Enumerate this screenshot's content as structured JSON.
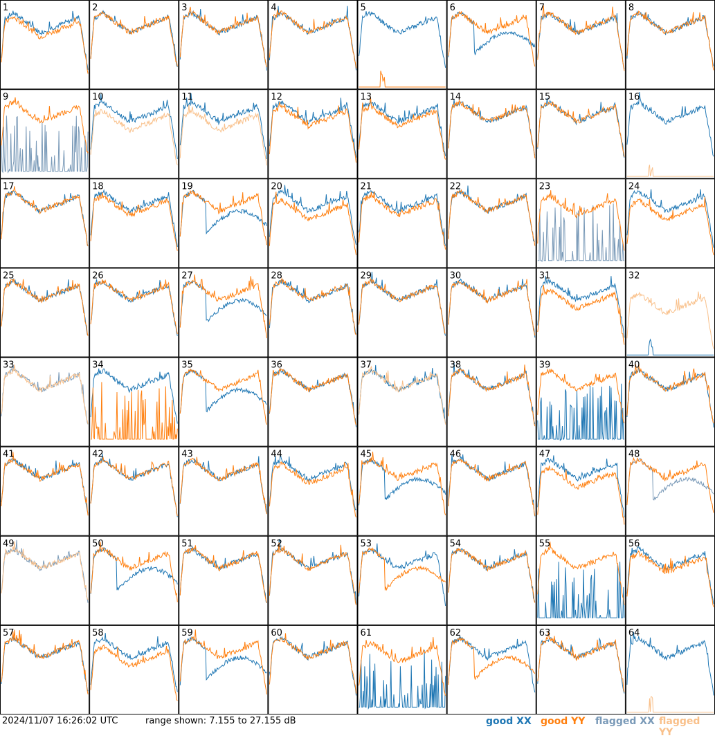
{
  "footer": {
    "timestamp": "2024/11/07 16:26:02 UTC",
    "range": "range shown: 7.155 to 27.155 dB",
    "legend": {
      "good_xx": "good XX",
      "good_yy": "good YY",
      "flagged_xx": "flagged XX",
      "flagged_yy": "flagged YY"
    }
  },
  "colors": {
    "good_xx": "#1f77b4",
    "good_yy": "#ff7f0e",
    "flagged_xx": "#7a9ab8",
    "flagged_yy": "#f9c08a"
  },
  "chart_data": {
    "type": "line",
    "grid": "8x8 small multiples",
    "ylim_db": [
      7.155,
      27.155
    ],
    "panel_labels": [
      "1",
      "2",
      "3",
      "4",
      "5",
      "6",
      "7",
      "8",
      "9",
      "10",
      "11",
      "12",
      "13",
      "14",
      "15",
      "16",
      "17",
      "18",
      "19",
      "20",
      "21",
      "22",
      "23",
      "24",
      "25",
      "26",
      "27",
      "28",
      "29",
      "30",
      "31",
      "32",
      "33",
      "34",
      "35",
      "36",
      "37",
      "38",
      "39",
      "40",
      "41",
      "42",
      "43",
      "44",
      "45",
      "46",
      "47",
      "48",
      "49",
      "50",
      "51",
      "52",
      "53",
      "54",
      "55",
      "56",
      "57",
      "58",
      "59",
      "60",
      "61",
      "62",
      "63",
      "64"
    ],
    "panels": [
      {
        "xx": "bandpass",
        "yy": "bandpass",
        "yy_offset": -1
      },
      {
        "xx": "bandpass",
        "yy": "bandpass",
        "yy_offset": 0
      },
      {
        "xx": "bandpass",
        "yy": "bandpass",
        "yy_offset": 0
      },
      {
        "xx": "bandpass",
        "yy": "bandpass",
        "yy_offset": 0
      },
      {
        "xx": "bandpass",
        "yy": "flat"
      },
      {
        "xx": "dip",
        "yy": "bandpass",
        "yy_offset": 0
      },
      {
        "xx": "bandpass",
        "yy": "bandpass",
        "yy_offset": 0
      },
      {
        "xx": "bandpass",
        "yy": "bandpass",
        "yy_offset": 0
      },
      {
        "xx": "spikes",
        "yy": "bandpass",
        "yy_offset": 0,
        "xx_flagged": true
      },
      {
        "xx": "bandpass",
        "yy": "bandpass",
        "yy_offset": -2,
        "yy_flagged": true
      },
      {
        "xx": "bandpass",
        "yy": "bandpass",
        "yy_offset": -2,
        "yy_flagged": true
      },
      {
        "xx": "bandpass",
        "yy": "bandpass",
        "yy_offset": -1
      },
      {
        "xx": "bandpass",
        "yy": "bandpass",
        "yy_offset": -1
      },
      {
        "xx": "bandpass",
        "yy": "bandpass",
        "yy_offset": 0
      },
      {
        "xx": "bandpass",
        "yy": "bandpass",
        "yy_offset": 0
      },
      {
        "xx": "bandpass",
        "yy": "flat",
        "yy_flagged": true
      },
      {
        "xx": "bandpass",
        "yy": "bandpass",
        "yy_offset": 0
      },
      {
        "xx": "bandpass",
        "yy": "bandpass",
        "yy_offset": -1
      },
      {
        "xx": "dip",
        "yy": "bandpass",
        "yy_offset": 0
      },
      {
        "xx": "bandpass",
        "yy": "bandpass",
        "yy_offset": -2
      },
      {
        "xx": "bandpass",
        "yy": "bandpass",
        "yy_offset": -1
      },
      {
        "xx": "bandpass",
        "yy": "bandpass",
        "yy_offset": 0
      },
      {
        "xx": "spikes",
        "yy": "bandpass",
        "yy_offset": -1,
        "xx_flagged": true
      },
      {
        "xx": "bandpass",
        "yy": "bandpass",
        "yy_offset": -2
      },
      {
        "xx": "bandpass",
        "yy": "bandpass",
        "yy_offset": 0
      },
      {
        "xx": "bandpass",
        "yy": "bandpass",
        "yy_offset": 0
      },
      {
        "xx": "dip",
        "yy": "bandpass",
        "yy_offset": 0
      },
      {
        "xx": "bandpass",
        "yy": "bandpass",
        "yy_offset": 0
      },
      {
        "xx": "bandpass",
        "yy": "bandpass",
        "yy_offset": 0
      },
      {
        "xx": "bandpass",
        "yy": "bandpass",
        "yy_offset": 0
      },
      {
        "xx": "bandpass",
        "yy": "bandpass",
        "yy_offset": -2
      },
      {
        "xx": "flat",
        "yy": "bandpass",
        "yy_offset": -3,
        "yy_flagged": true
      },
      {
        "xx": "bandpass",
        "yy": "bandpass",
        "yy_offset": 0,
        "xx_flagged": true,
        "yy_flagged": true
      },
      {
        "xx": "bandpass",
        "yy": "spikes"
      },
      {
        "xx": "dip",
        "yy": "bandpass",
        "yy_offset": 0
      },
      {
        "xx": "bandpass",
        "yy": "bandpass",
        "yy_offset": 0
      },
      {
        "xx": "bandpass",
        "yy": "bandpass",
        "yy_offset": 0,
        "yy_flagged": true
      },
      {
        "xx": "bandpass",
        "yy": "bandpass",
        "yy_offset": 0
      },
      {
        "xx": "spikes",
        "yy": "bandpass",
        "yy_offset": 0
      },
      {
        "xx": "bandpass",
        "yy": "bandpass",
        "yy_offset": 0
      },
      {
        "xx": "bandpass",
        "yy": "bandpass",
        "yy_offset": 0
      },
      {
        "xx": "bandpass",
        "yy": "bandpass",
        "yy_offset": 0
      },
      {
        "xx": "bandpass",
        "yy": "bandpass",
        "yy_offset": 0
      },
      {
        "xx": "bandpass",
        "yy": "bandpass",
        "yy_offset": -1
      },
      {
        "xx": "dip",
        "yy": "bandpass",
        "yy_offset": 0
      },
      {
        "xx": "bandpass",
        "yy": "bandpass",
        "yy_offset": 0
      },
      {
        "xx": "bandpass",
        "yy": "bandpass",
        "yy_offset": -2
      },
      {
        "xx": "dip",
        "yy": "bandpass",
        "yy_offset": 0,
        "xx_flagged": true
      },
      {
        "xx": "bandpass",
        "yy": "bandpass",
        "yy_offset": 0,
        "xx_flagged": true,
        "yy_flagged": true
      },
      {
        "xx": "dip",
        "yy": "bandpass",
        "yy_offset": 0
      },
      {
        "xx": "bandpass",
        "yy": "bandpass",
        "yy_offset": 0
      },
      {
        "xx": "bandpass",
        "yy": "bandpass",
        "yy_offset": 0
      },
      {
        "xx": "bandpass",
        "yy": "dip"
      },
      {
        "xx": "bandpass",
        "yy": "bandpass",
        "yy_offset": 0
      },
      {
        "xx": "spikes",
        "yy": "bandpass",
        "yy_offset": 0
      },
      {
        "xx": "bandpass",
        "yy": "bandpass",
        "yy_offset": -1
      },
      {
        "xx": "bandpass",
        "yy": "bandpass",
        "yy_offset": 0
      },
      {
        "xx": "bandpass",
        "yy": "bandpass",
        "yy_offset": -2
      },
      {
        "xx": "dip",
        "yy": "bandpass",
        "yy_offset": 0
      },
      {
        "xx": "bandpass",
        "yy": "bandpass",
        "yy_offset": 0
      },
      {
        "xx": "spikes",
        "yy": "bandpass",
        "yy_offset": -1
      },
      {
        "xx": "bandpass",
        "yy": "dip"
      },
      {
        "xx": "bandpass",
        "yy": "bandpass",
        "yy_offset": 0
      },
      {
        "xx": "bandpass",
        "yy": "flat",
        "yy_flagged": true
      }
    ]
  }
}
